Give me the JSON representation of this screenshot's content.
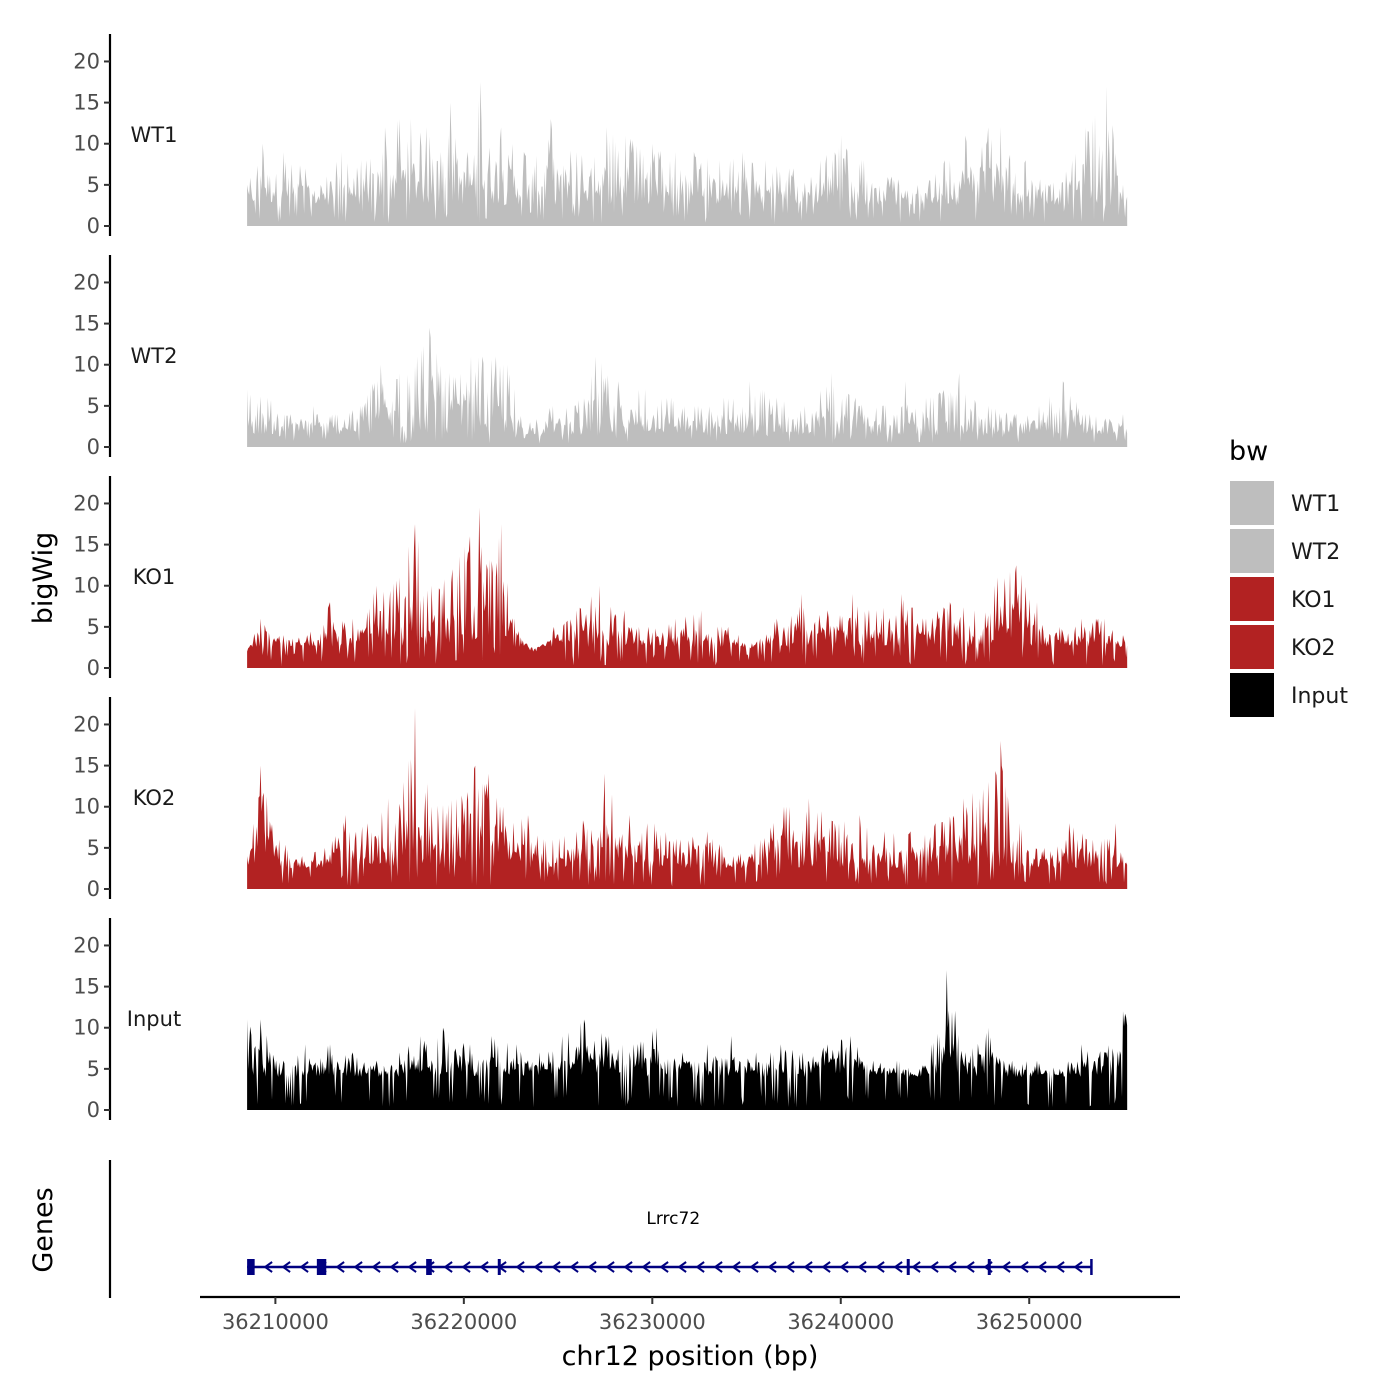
{
  "chart_data": {
    "type": "area",
    "title": "",
    "ylabel": "bigWig",
    "xlabel": "chr12 position (bp)",
    "genes_label": "Genes",
    "xlim": [
      36206000,
      36258000
    ],
    "region": [
      36208500,
      36255200
    ],
    "ylim": [
      0,
      22
    ],
    "yticks": [
      0,
      5,
      10,
      15,
      20
    ],
    "xticks": [
      36210000,
      36220000,
      36230000,
      36240000,
      36250000
    ],
    "xtick_labels": [
      "36210000",
      "36220000",
      "36230000",
      "36240000",
      "36250000"
    ],
    "legend": {
      "title": "bw",
      "entries": [
        {
          "label": "WT1",
          "color": "#bebebe"
        },
        {
          "label": "WT2",
          "color": "#bebebe"
        },
        {
          "label": "KO1",
          "color": "#b22222"
        },
        {
          "label": "KO2",
          "color": "#b22222"
        },
        {
          "label": "Input",
          "color": "#000000"
        }
      ]
    },
    "series": [
      {
        "name": "WT1",
        "color": "#bebebe",
        "peaks": [
          [
            36208500,
            5
          ],
          [
            36209300,
            10
          ],
          [
            36210400,
            9
          ],
          [
            36211600,
            7
          ],
          [
            36212400,
            5
          ],
          [
            36213500,
            9
          ],
          [
            36214800,
            8
          ],
          [
            36215800,
            12
          ],
          [
            36216600,
            13
          ],
          [
            36217200,
            13
          ],
          [
            36218000,
            12
          ],
          [
            36218800,
            9
          ],
          [
            36219300,
            15
          ],
          [
            36220200,
            9
          ],
          [
            36220900,
            17.5
          ],
          [
            36222000,
            12
          ],
          [
            36223200,
            9
          ],
          [
            36224600,
            13
          ],
          [
            36226000,
            9
          ],
          [
            36227600,
            12
          ],
          [
            36228600,
            11
          ],
          [
            36230000,
            10
          ],
          [
            36231200,
            9
          ],
          [
            36232200,
            9
          ],
          [
            36233600,
            8
          ],
          [
            36234800,
            9
          ],
          [
            36236000,
            8
          ],
          [
            36237500,
            7
          ],
          [
            36238900,
            8
          ],
          [
            36240000,
            11
          ],
          [
            36241200,
            8
          ],
          [
            36242700,
            6
          ],
          [
            36244100,
            5
          ],
          [
            36245500,
            8
          ],
          [
            36246600,
            11
          ],
          [
            36247800,
            12
          ],
          [
            36248500,
            12
          ],
          [
            36249800,
            8
          ],
          [
            36251000,
            5
          ],
          [
            36252300,
            8
          ],
          [
            36253000,
            12
          ],
          [
            36254100,
            17
          ],
          [
            36255000,
            5
          ]
        ],
        "base": 2.5
      },
      {
        "name": "WT2",
        "color": "#bebebe",
        "peaks": [
          [
            36208500,
            7
          ],
          [
            36209600,
            6
          ],
          [
            36210800,
            4
          ],
          [
            36212000,
            5
          ],
          [
            36213200,
            4
          ],
          [
            36214500,
            5
          ],
          [
            36215600,
            10
          ],
          [
            36216600,
            9
          ],
          [
            36217500,
            11
          ],
          [
            36218200,
            14.5
          ],
          [
            36219200,
            9
          ],
          [
            36220400,
            11
          ],
          [
            36221000,
            11
          ],
          [
            36221700,
            11
          ],
          [
            36222300,
            10
          ],
          [
            36223500,
            3
          ],
          [
            36224700,
            5
          ],
          [
            36225900,
            5
          ],
          [
            36227000,
            11
          ],
          [
            36228200,
            8
          ],
          [
            36229600,
            7
          ],
          [
            36231000,
            6
          ],
          [
            36232400,
            5
          ],
          [
            36233800,
            6
          ],
          [
            36235200,
            8
          ],
          [
            36236600,
            6
          ],
          [
            36238100,
            5
          ],
          [
            36239500,
            9
          ],
          [
            36240800,
            6
          ],
          [
            36242200,
            5
          ],
          [
            36243400,
            8
          ],
          [
            36244900,
            6
          ],
          [
            36246300,
            9
          ],
          [
            36247800,
            5
          ],
          [
            36249200,
            4
          ],
          [
            36250500,
            5
          ],
          [
            36251800,
            8
          ],
          [
            36253200,
            4
          ],
          [
            36255000,
            4
          ]
        ],
        "base": 1.5
      },
      {
        "name": "KO1",
        "color": "#b22222",
        "peaks": [
          [
            36208500,
            2
          ],
          [
            36209200,
            6
          ],
          [
            36210400,
            4
          ],
          [
            36211700,
            4
          ],
          [
            36212900,
            8
          ],
          [
            36214100,
            6
          ],
          [
            36215400,
            10
          ],
          [
            36216600,
            11
          ],
          [
            36217400,
            17.5
          ],
          [
            36218300,
            10
          ],
          [
            36219400,
            12
          ],
          [
            36220800,
            19.5
          ],
          [
            36221500,
            13
          ],
          [
            36222000,
            17.5
          ],
          [
            36222700,
            6
          ],
          [
            36223700,
            2
          ],
          [
            36224800,
            5
          ],
          [
            36226000,
            7
          ],
          [
            36227200,
            10
          ],
          [
            36228500,
            7
          ],
          [
            36229800,
            5
          ],
          [
            36231200,
            6
          ],
          [
            36232600,
            7
          ],
          [
            36234000,
            5
          ],
          [
            36235300,
            3
          ],
          [
            36236600,
            6
          ],
          [
            36237900,
            9
          ],
          [
            36239300,
            7
          ],
          [
            36240600,
            9
          ],
          [
            36241900,
            7
          ],
          [
            36243200,
            9
          ],
          [
            36244500,
            6
          ],
          [
            36245800,
            8
          ],
          [
            36247100,
            7
          ],
          [
            36248300,
            11
          ],
          [
            36249300,
            12.5
          ],
          [
            36250400,
            8
          ],
          [
            36251600,
            5
          ],
          [
            36252800,
            6
          ],
          [
            36254000,
            6
          ],
          [
            36255000,
            4
          ]
        ],
        "base": 2.5
      },
      {
        "name": "KO2",
        "color": "#b22222",
        "peaks": [
          [
            36208500,
            4
          ],
          [
            36209200,
            15
          ],
          [
            36210200,
            6
          ],
          [
            36211400,
            4
          ],
          [
            36212600,
            5
          ],
          [
            36213700,
            9
          ],
          [
            36214900,
            8
          ],
          [
            36216000,
            11
          ],
          [
            36216800,
            13
          ],
          [
            36217400,
            22
          ],
          [
            36218300,
            10
          ],
          [
            36219600,
            11
          ],
          [
            36220600,
            15
          ],
          [
            36221300,
            14
          ],
          [
            36222100,
            10
          ],
          [
            36223400,
            9
          ],
          [
            36224700,
            6
          ],
          [
            36226000,
            7
          ],
          [
            36227500,
            14
          ],
          [
            36228800,
            9
          ],
          [
            36230100,
            8
          ],
          [
            36231500,
            6
          ],
          [
            36232900,
            7
          ],
          [
            36234300,
            4
          ],
          [
            36235700,
            6
          ],
          [
            36237000,
            10
          ],
          [
            36238300,
            11
          ],
          [
            36239700,
            8
          ],
          [
            36241000,
            9
          ],
          [
            36242300,
            7
          ],
          [
            36243700,
            7
          ],
          [
            36245000,
            8
          ],
          [
            36246500,
            11
          ],
          [
            36247800,
            13
          ],
          [
            36248500,
            18
          ],
          [
            36249500,
            8
          ],
          [
            36250800,
            5
          ],
          [
            36252100,
            8
          ],
          [
            36253400,
            6
          ],
          [
            36254600,
            8
          ],
          [
            36255000,
            4
          ]
        ],
        "base": 2.5
      },
      {
        "name": "Input",
        "color": "#000000",
        "peaks": [
          [
            36208500,
            11
          ],
          [
            36209200,
            11
          ],
          [
            36210400,
            6
          ],
          [
            36211600,
            8
          ],
          [
            36212900,
            8
          ],
          [
            36214100,
            7
          ],
          [
            36215400,
            6
          ],
          [
            36216600,
            7
          ],
          [
            36217700,
            9
          ],
          [
            36218900,
            10
          ],
          [
            36220300,
            8
          ],
          [
            36221500,
            9
          ],
          [
            36222800,
            8
          ],
          [
            36224000,
            7
          ],
          [
            36225200,
            9
          ],
          [
            36226400,
            11
          ],
          [
            36227700,
            9
          ],
          [
            36229000,
            8
          ],
          [
            36230200,
            10
          ],
          [
            36231600,
            7
          ],
          [
            36232900,
            8
          ],
          [
            36234200,
            9
          ],
          [
            36235500,
            7
          ],
          [
            36236800,
            8
          ],
          [
            36238000,
            7
          ],
          [
            36239300,
            8
          ],
          [
            36240500,
            9
          ],
          [
            36241700,
            6
          ],
          [
            36243000,
            6
          ],
          [
            36244200,
            5
          ],
          [
            36245600,
            17
          ],
          [
            36246600,
            7
          ],
          [
            36247800,
            10
          ],
          [
            36249100,
            6
          ],
          [
            36250400,
            6
          ],
          [
            36251600,
            5
          ],
          [
            36252800,
            8
          ],
          [
            36254000,
            7
          ],
          [
            36255000,
            12
          ]
        ],
        "base": 4
      }
    ],
    "gene": {
      "name": "Lrrc72",
      "strand": "-",
      "color": "#000080",
      "start": 36208500,
      "end": 36253300,
      "exons": [
        [
          36208500,
          36208900
        ],
        [
          36212200,
          36212700
        ],
        [
          36218000,
          36218300
        ],
        [
          36221800,
          36221900
        ],
        [
          36243500,
          36243550
        ],
        [
          36247800,
          36247850
        ]
      ]
    }
  }
}
